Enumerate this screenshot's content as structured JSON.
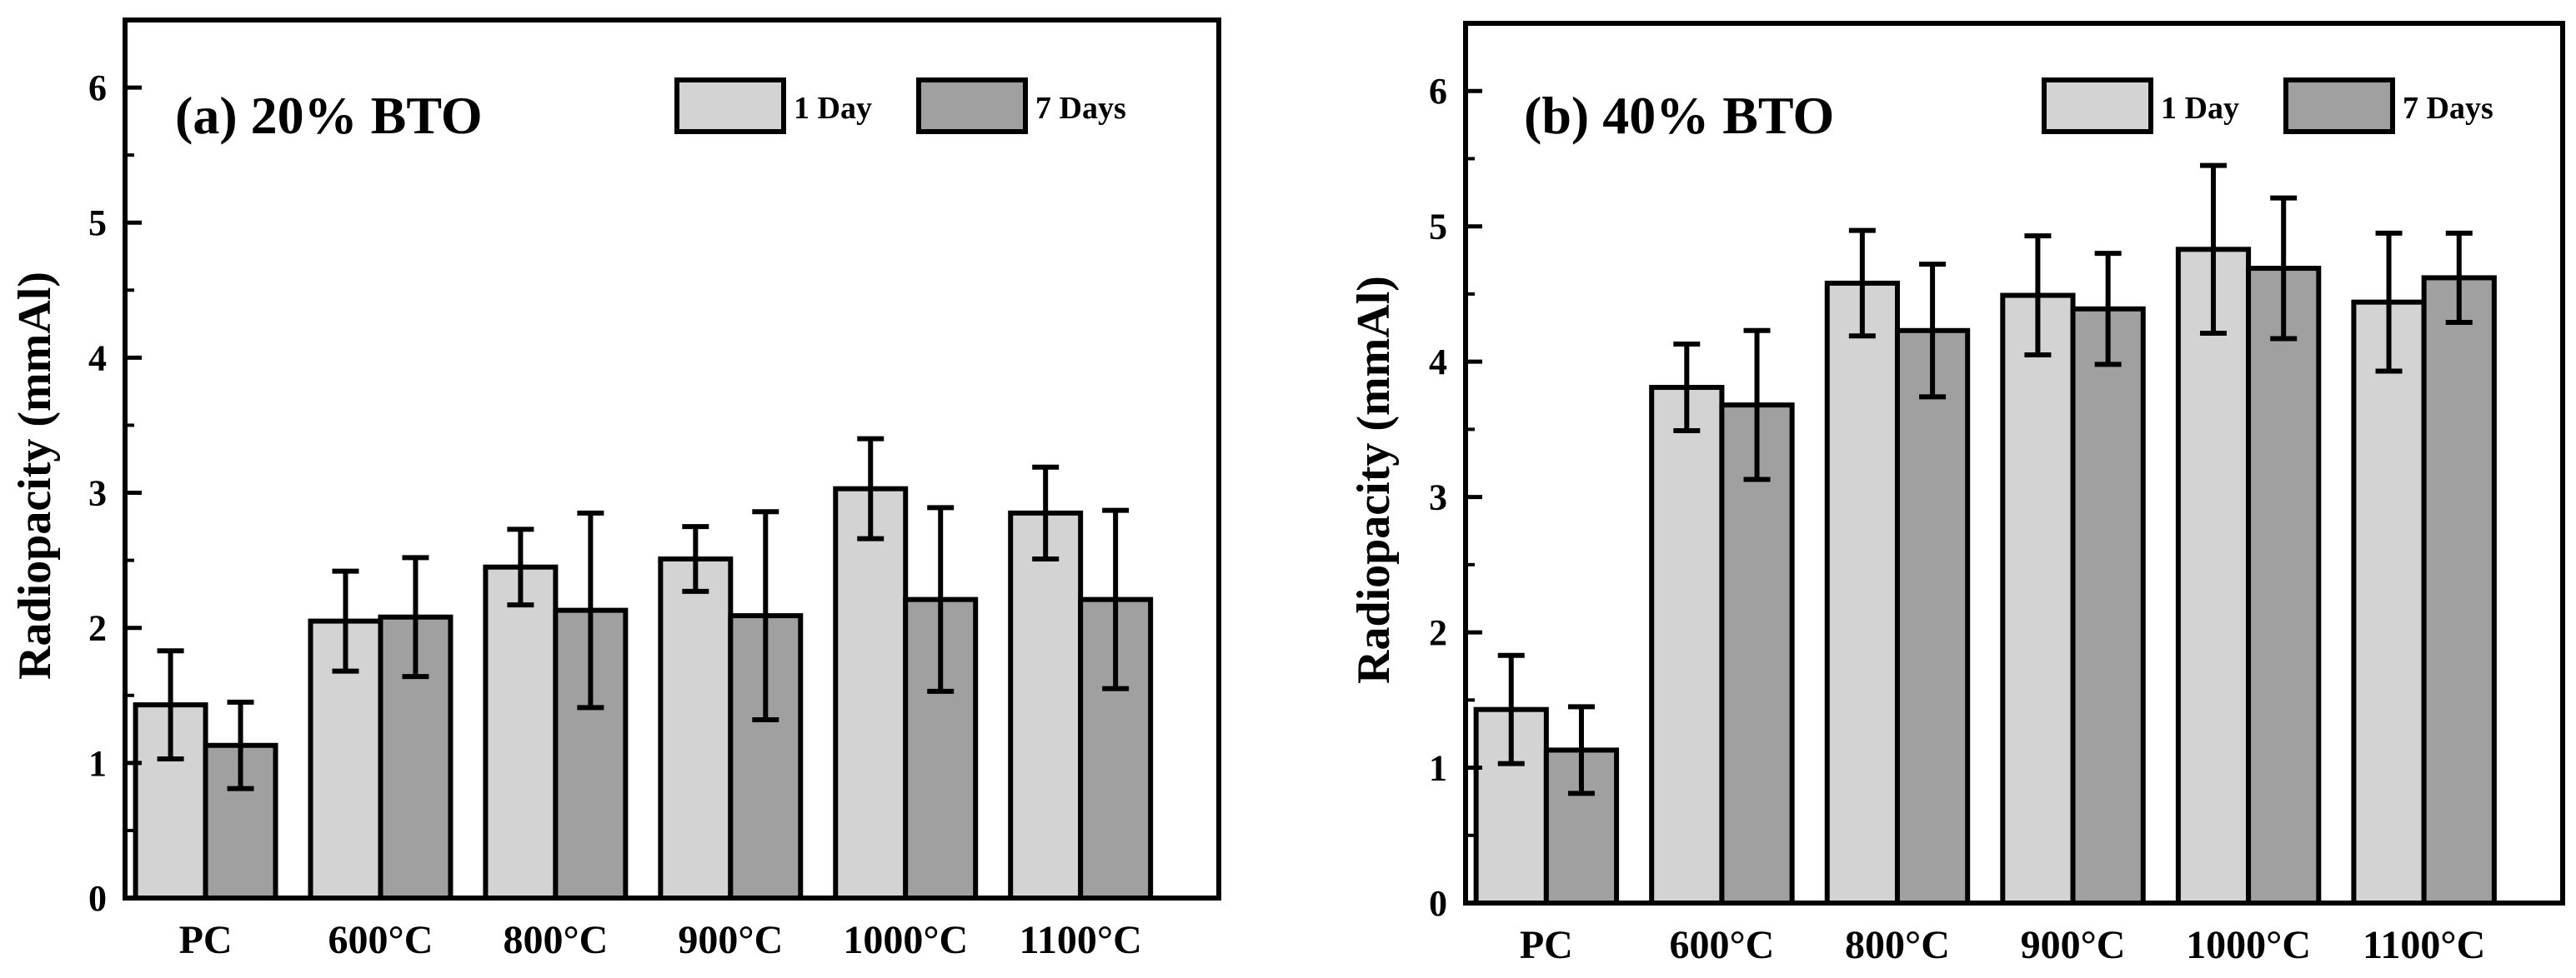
{
  "chart_data": [
    {
      "type": "bar",
      "title": "(a) 20% BTO",
      "ylabel": "Radiopacity (mmAl)",
      "xlabel": "",
      "ylim": [
        0,
        6.5
      ],
      "yticks": [
        0,
        1,
        2,
        3,
        4,
        5,
        6
      ],
      "categories": [
        "PC",
        "600°C",
        "800°C",
        "900°C",
        "1000°C",
        "1100°C"
      ],
      "legend_position": "top-right",
      "grid": false,
      "series": [
        {
          "name": "1 Day",
          "color": "#d3d3d3",
          "values": [
            1.43,
            2.05,
            2.45,
            2.51,
            3.03,
            2.85
          ],
          "errors": [
            0.4,
            0.37,
            0.28,
            0.24,
            0.37,
            0.34
          ]
        },
        {
          "name": "7 Days",
          "color": "#a0a0a0",
          "values": [
            1.13,
            2.08,
            2.13,
            2.09,
            2.21,
            2.21
          ],
          "errors": [
            0.32,
            0.44,
            0.72,
            0.77,
            0.68,
            0.66
          ]
        }
      ]
    },
    {
      "type": "bar",
      "title": "(b) 40% BTO",
      "ylabel": "Radiopacity (mmAl)",
      "xlabel": "",
      "ylim": [
        0,
        6.5
      ],
      "yticks": [
        0,
        1,
        2,
        3,
        4,
        5,
        6
      ],
      "categories": [
        "PC",
        "600°C",
        "800°C",
        "900°C",
        "1000°C",
        "1100°C"
      ],
      "legend_position": "top-right",
      "grid": false,
      "series": [
        {
          "name": "1 Day",
          "color": "#d3d3d3",
          "values": [
            1.43,
            3.81,
            4.58,
            4.49,
            4.83,
            4.44
          ],
          "errors": [
            0.4,
            0.32,
            0.39,
            0.44,
            0.62,
            0.51
          ]
        },
        {
          "name": "7 Days",
          "color": "#a0a0a0",
          "values": [
            1.13,
            3.68,
            4.23,
            4.39,
            4.69,
            4.62
          ],
          "errors": [
            0.32,
            0.55,
            0.49,
            0.41,
            0.52,
            0.33
          ]
        }
      ]
    }
  ]
}
